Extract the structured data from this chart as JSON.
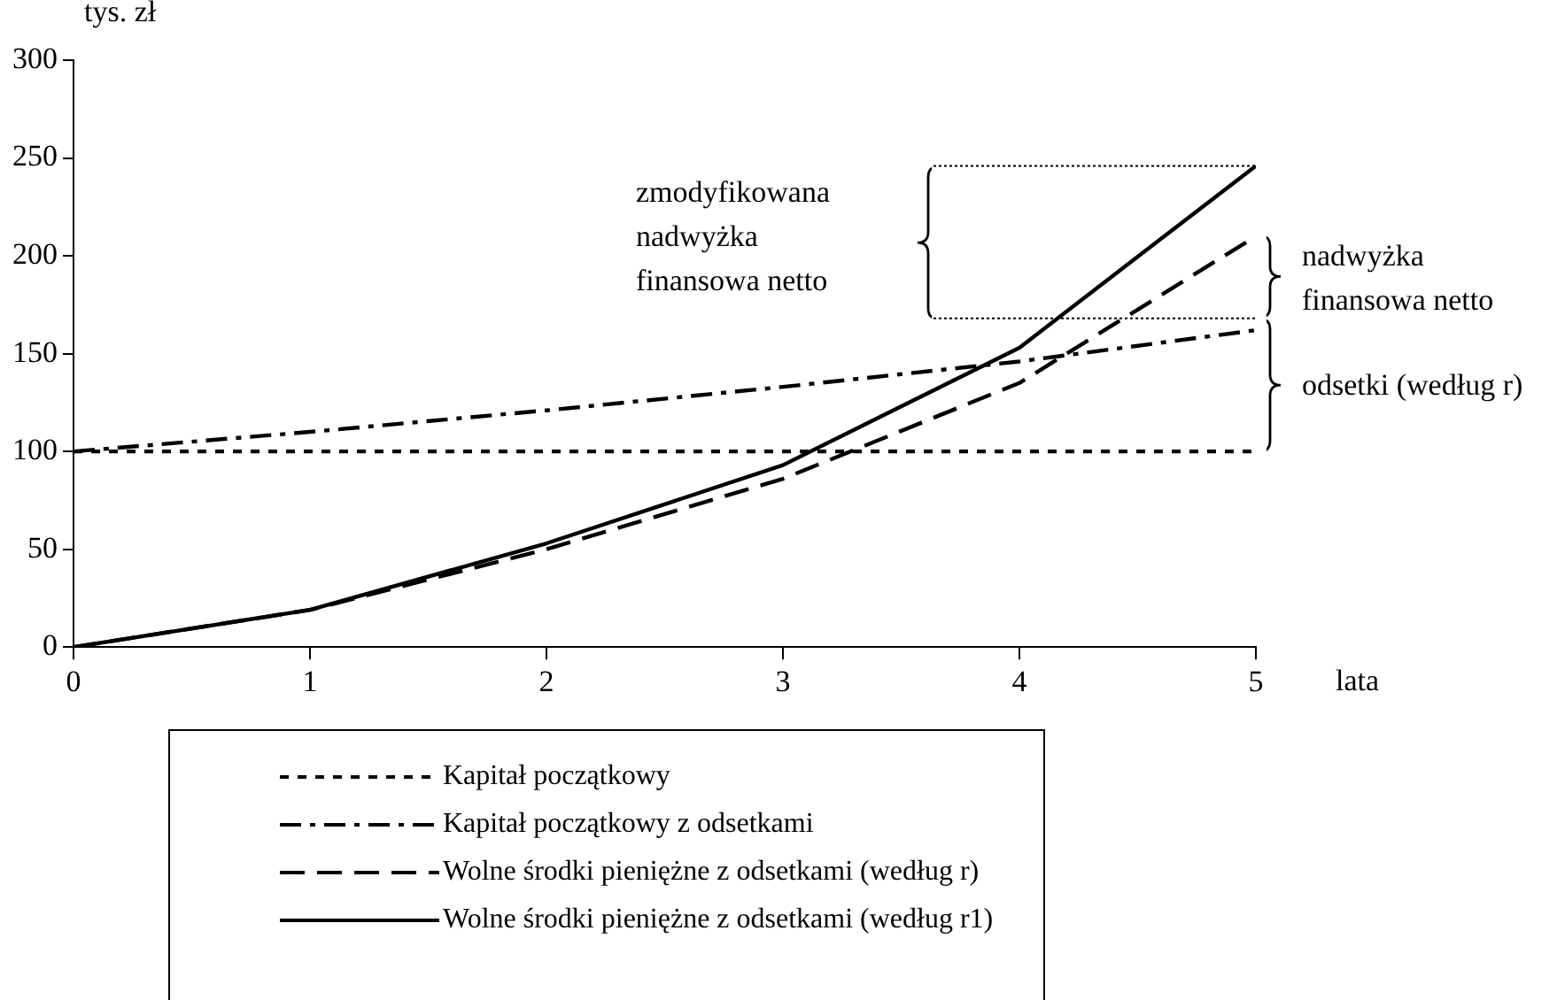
{
  "chart_data": {
    "type": "line",
    "ylabel": "tys. zł",
    "xlabel": "lata",
    "x": [
      0,
      1,
      2,
      3,
      4,
      5
    ],
    "xlim": [
      0,
      5
    ],
    "xticks": [
      0,
      1,
      2,
      3,
      4,
      5
    ],
    "ylim": [
      0,
      300
    ],
    "yticks": [
      0,
      50,
      100,
      150,
      200,
      250,
      300
    ],
    "marker": "none",
    "legend": "bottom",
    "series": [
      {
        "name": "Kapitał początkowy",
        "color": "#000000",
        "line_style": "dotted",
        "values": [
          100,
          100,
          100,
          100,
          100,
          100
        ]
      },
      {
        "name": "Kapitał początkowy z odsetkami",
        "color": "#000000",
        "line_style": "dashdot",
        "values": [
          100,
          110,
          121,
          133,
          146,
          162
        ]
      },
      {
        "name": "Wolne środki pieniężne z odsetkami (według r)",
        "color": "#000000",
        "line_style": "dashed",
        "values": [
          0,
          19,
          50,
          86,
          135,
          210
        ]
      },
      {
        "name": "Wolne środki pieniężne z odsetkami (według r1)",
        "color": "#000000",
        "line_style": "solid",
        "values": [
          0,
          19,
          53,
          93,
          153,
          246
        ]
      }
    ],
    "ref_lines": [
      {
        "axis": "y",
        "value": 246,
        "line_style": "dotted",
        "color": "#000000"
      },
      {
        "axis": "y",
        "value": 168,
        "line_style": "dotted",
        "color": "#000000"
      }
    ],
    "annotations": [
      "zmodyfikowana nadwyżka finansowa netto",
      "nadwyżka finansowa netto",
      "odsetki (według r)"
    ]
  }
}
